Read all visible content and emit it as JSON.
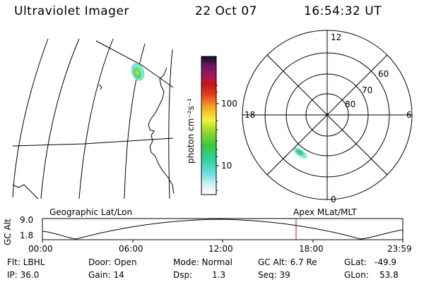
{
  "header": {
    "title": "Ultraviolet Imager",
    "date": "22 Oct 07",
    "time": "16:54:32 UT"
  },
  "colorbar": {
    "unit": "photon cm⁻²s⁻¹",
    "tick_labels": [
      "100",
      "10"
    ]
  },
  "polar": {
    "mlt_labels": [
      "12",
      "18",
      "6",
      "0"
    ],
    "lat_labels": [
      "60",
      "70",
      "80"
    ]
  },
  "orbit": {
    "left_title": "Geographic Lat/Lon",
    "right_title": "Apex MLat/MLT",
    "y_axis_label": "GC Alt",
    "y_ticks": [
      "9.0",
      "1.8"
    ],
    "x_ticks": [
      "00:00",
      "06:00",
      "12:00",
      "18:00",
      "23:59"
    ],
    "marker_color": "#e00000"
  },
  "info": {
    "flt": "Flt: LBHL",
    "ip": "IP: 36.0",
    "door": "Door: Open",
    "gain": "Gain: 14",
    "mode": "Mode: Normal",
    "dsp_label": "Dsp:",
    "dsp_value": "1.3",
    "gcalt": "GC Alt: 6.7 Re",
    "seq": "Seq: 39",
    "glat_label": "GLat:",
    "glat_value": "-49.9",
    "glon_label": "GLon:",
    "glon_value": "53.8"
  }
}
